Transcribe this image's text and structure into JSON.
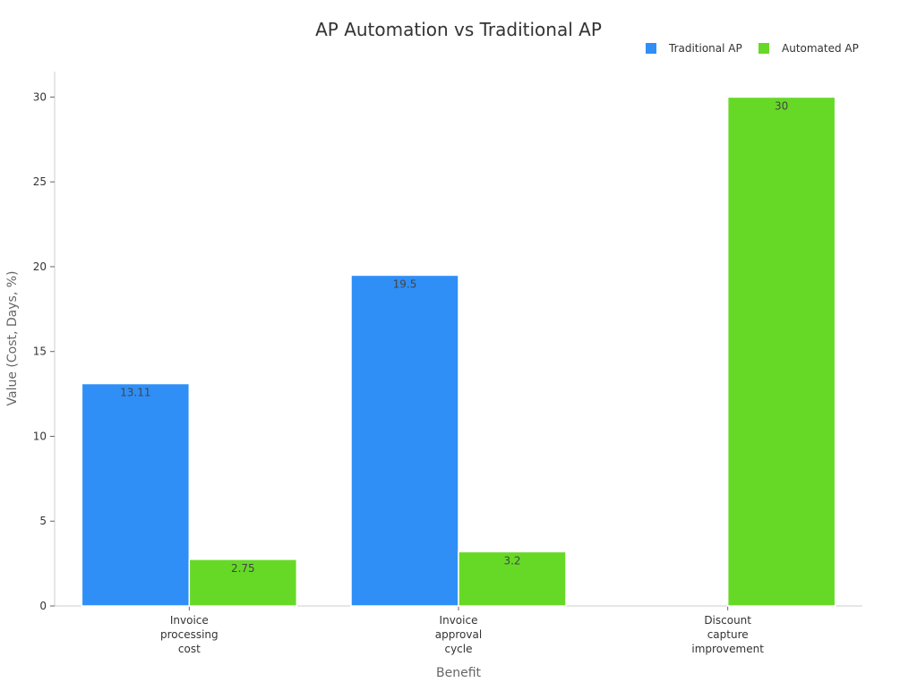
{
  "chart_data": {
    "type": "bar",
    "title": "AP Automation vs Traditional AP",
    "xlabel": "Benefit",
    "ylabel": "Value (Cost, Days, %)",
    "categories": [
      [
        "Invoice",
        "processing",
        "cost"
      ],
      [
        "Invoice",
        "approval",
        "cycle"
      ],
      [
        "Discount",
        "capture",
        "improvement"
      ]
    ],
    "series": [
      {
        "name": "Traditional AP",
        "color": "#2f8ff7",
        "values": [
          13.11,
          19.5,
          null
        ]
      },
      {
        "name": "Automated AP",
        "color": "#66d926",
        "values": [
          2.75,
          3.2,
          30
        ]
      }
    ],
    "ylim": [
      0,
      31.5
    ],
    "yticks": [
      0,
      5,
      10,
      15,
      20,
      25,
      30
    ],
    "grid": false,
    "legend_position": "top-right",
    "data_labels": true
  }
}
